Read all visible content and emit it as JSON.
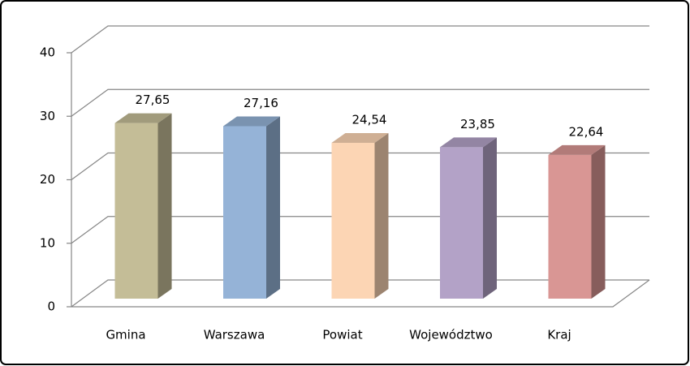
{
  "chart_data": {
    "type": "bar3d",
    "categories": [
      "Gmina",
      "Warszawa",
      "Powiat",
      "Województwo",
      "Kraj"
    ],
    "values": [
      27.65,
      27.16,
      24.54,
      23.85,
      22.64
    ],
    "value_labels": [
      "27,65",
      "27,16",
      "24,54",
      "23,85",
      "22,64"
    ],
    "colors": [
      "#c4bd97",
      "#95b3d7",
      "#fcd5b4",
      "#b3a2c7",
      "#d99694"
    ],
    "ylim": [
      0,
      40
    ],
    "yticks": [
      0,
      10,
      20,
      30,
      40
    ],
    "grid": true
  }
}
